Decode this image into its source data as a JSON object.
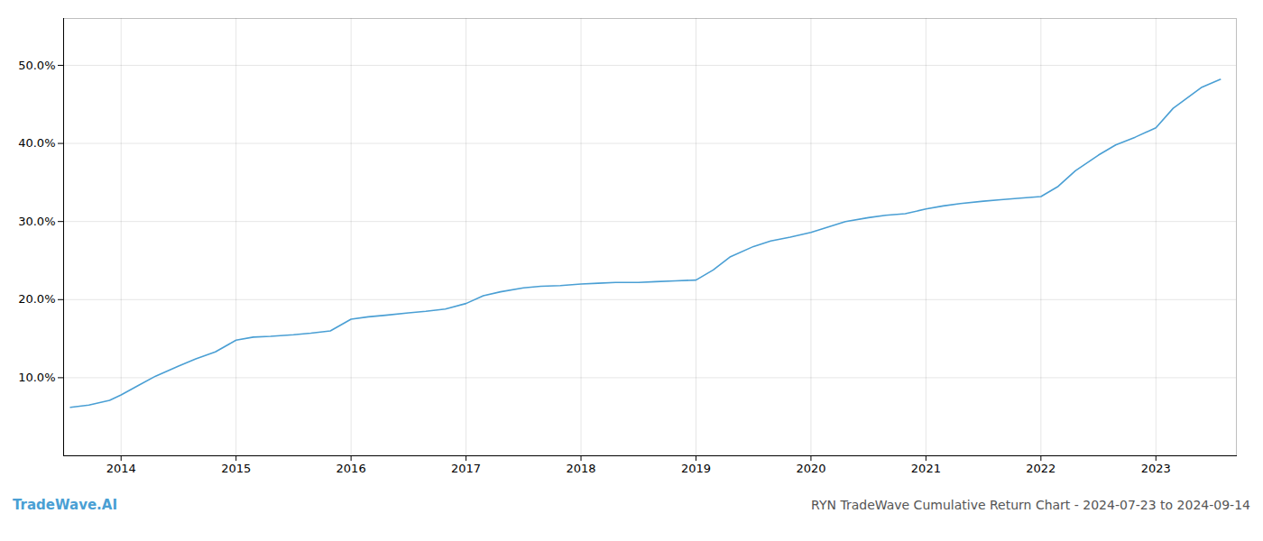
{
  "chart_data": {
    "type": "line",
    "title": "RYN TradeWave Cumulative Return Chart - 2024-07-23 to 2024-09-14",
    "annotations": [
      "TradeWave.AI"
    ],
    "color": "#4a9fd4",
    "x": [
      2013.56,
      2013.72,
      2013.9,
      2014.0,
      2014.15,
      2014.3,
      2014.5,
      2014.65,
      2014.82,
      2015.0,
      2015.15,
      2015.3,
      2015.5,
      2015.65,
      2015.82,
      2016.0,
      2016.15,
      2016.3,
      2016.5,
      2016.65,
      2016.82,
      2017.0,
      2017.15,
      2017.3,
      2017.5,
      2017.65,
      2017.82,
      2018.0,
      2018.15,
      2018.3,
      2018.5,
      2018.65,
      2018.82,
      2019.0,
      2019.15,
      2019.3,
      2019.5,
      2019.65,
      2019.82,
      2020.0,
      2020.15,
      2020.3,
      2020.5,
      2020.65,
      2020.82,
      2021.0,
      2021.15,
      2021.3,
      2021.5,
      2021.65,
      2021.82,
      2022.0,
      2022.15,
      2022.3,
      2022.5,
      2022.65,
      2022.82,
      2023.0,
      2023.15,
      2023.4,
      2023.56
    ],
    "values": [
      0.062,
      0.065,
      0.071,
      0.078,
      0.09,
      0.102,
      0.115,
      0.124,
      0.133,
      0.148,
      0.152,
      0.153,
      0.155,
      0.157,
      0.16,
      0.175,
      0.178,
      0.18,
      0.183,
      0.185,
      0.188,
      0.195,
      0.205,
      0.21,
      0.215,
      0.217,
      0.218,
      0.22,
      0.221,
      0.222,
      0.222,
      0.223,
      0.224,
      0.225,
      0.238,
      0.255,
      0.268,
      0.275,
      0.28,
      0.286,
      0.293,
      0.3,
      0.305,
      0.308,
      0.31,
      0.316,
      0.32,
      0.323,
      0.326,
      0.328,
      0.33,
      0.332,
      0.345,
      0.365,
      0.385,
      0.398,
      0.408,
      0.42,
      0.445,
      0.472,
      0.482
    ],
    "xlim": [
      2013.5,
      2023.7
    ],
    "ylim": [
      0.0,
      0.56
    ],
    "xticks": [
      2014,
      2015,
      2016,
      2017,
      2018,
      2019,
      2020,
      2021,
      2022,
      2023
    ],
    "yticks": [
      {
        "value": 0.1,
        "label": "10.0%"
      },
      {
        "value": 0.2,
        "label": "20.0%"
      },
      {
        "value": 0.3,
        "label": "30.0%"
      },
      {
        "value": 0.4,
        "label": "40.0%"
      },
      {
        "value": 0.5,
        "label": "50.0%"
      }
    ],
    "grid": true
  }
}
